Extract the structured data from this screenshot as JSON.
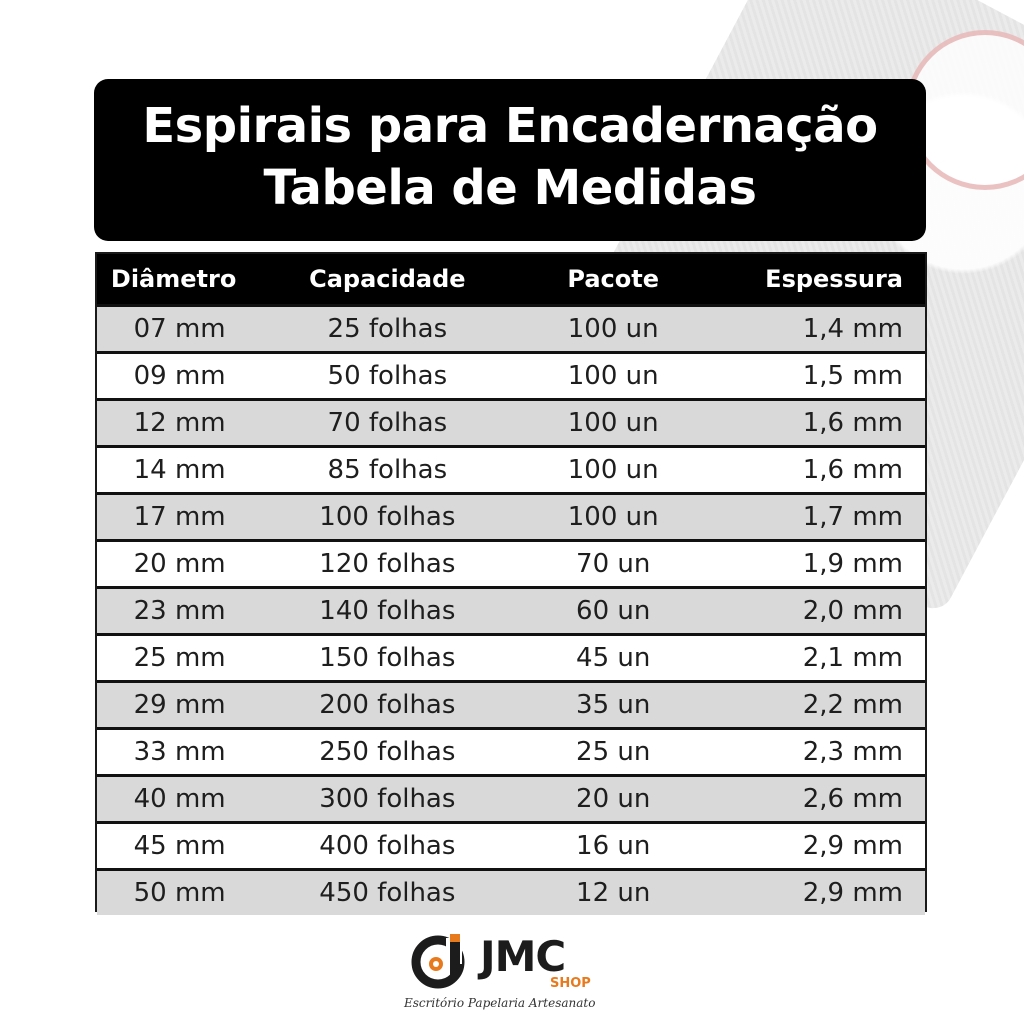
{
  "title": {
    "line1": "Espirais para Encadernação",
    "line2": "Tabela de Medidas"
  },
  "table": {
    "headers": [
      "Diâmetro",
      "Capacidade",
      "Pacote",
      "Espessura"
    ],
    "rows": [
      [
        "07 mm",
        "25 folhas",
        "100 un",
        "1,4 mm"
      ],
      [
        "09 mm",
        "50 folhas",
        "100 un",
        "1,5 mm"
      ],
      [
        "12 mm",
        "70 folhas",
        "100 un",
        "1,6 mm"
      ],
      [
        "14 mm",
        "85 folhas",
        "100 un",
        "1,6 mm"
      ],
      [
        "17 mm",
        "100 folhas",
        "100 un",
        "1,7 mm"
      ],
      [
        "20 mm",
        "120 folhas",
        "70 un",
        "1,9 mm"
      ],
      [
        "23 mm",
        "140 folhas",
        "60 un",
        "2,0 mm"
      ],
      [
        "25 mm",
        "150 folhas",
        "45 un",
        "2,1 mm"
      ],
      [
        "29 mm",
        "200 folhas",
        "35 un",
        "2,2 mm"
      ],
      [
        "33 mm",
        "250 folhas",
        "25 un",
        "2,3 mm"
      ],
      [
        "40 mm",
        "300 folhas",
        "20 un",
        "2,6 mm"
      ],
      [
        "45 mm",
        "400 folhas",
        "16 un",
        "2,9 mm"
      ],
      [
        "50 mm",
        "450 folhas",
        "12 un",
        "2,9 mm"
      ]
    ]
  },
  "logo": {
    "name": "JMC",
    "sub": "SHOP",
    "tagline": "Escritório  Papelaria  Artesanato",
    "accent_color": "#e87a1e"
  }
}
